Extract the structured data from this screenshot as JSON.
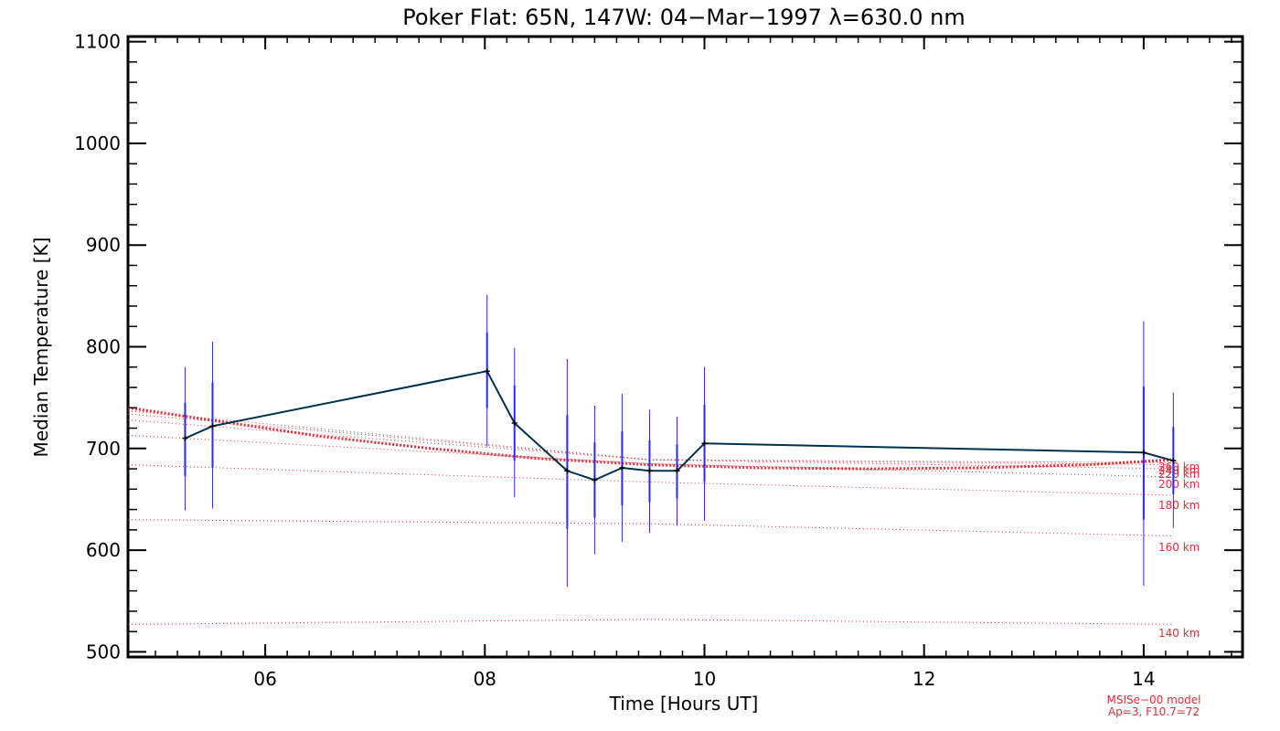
{
  "chart_data": {
    "type": "line",
    "title": "Poker Flat: 65N, 147W: 04−Mar−1997 λ=630.0 nm",
    "xlabel": "Time [Hours UT]",
    "ylabel": "Median Temperature [K]",
    "xlim": [
      4.75,
      14.9
    ],
    "ylim": [
      495,
      1105
    ],
    "xticks": [
      6,
      8,
      10,
      12,
      14
    ],
    "xtick_labels": [
      "06",
      "08",
      "10",
      "12",
      "14"
    ],
    "yticks": [
      500,
      600,
      700,
      800,
      900,
      1000,
      1100
    ],
    "ytick_labels": [
      "500",
      "600",
      "700",
      "800",
      "900",
      "1000",
      "1100"
    ],
    "grid": false,
    "series": [
      {
        "role": "observed",
        "color": "#003050",
        "error_color": "#2a2aff",
        "x": [
          5.27,
          5.52,
          8.02,
          8.27,
          8.75,
          9.0,
          9.25,
          9.5,
          9.75,
          10.0,
          14.0,
          14.27
        ],
        "values": [
          710,
          722,
          776,
          725,
          678,
          669,
          681,
          678,
          678,
          705,
          696,
          688
        ],
        "err_outer": [
          [
            639,
            780
          ],
          [
            641,
            805
          ],
          [
            702,
            851
          ],
          [
            652,
            799
          ],
          [
            564,
            788
          ],
          [
            596,
            742
          ],
          [
            608,
            754
          ],
          [
            617,
            738
          ],
          [
            624,
            731
          ],
          [
            629,
            780
          ],
          [
            565,
            825
          ],
          [
            622,
            755
          ]
        ],
        "err_inner": [
          [
            673,
            745
          ],
          [
            681,
            765
          ],
          [
            740,
            814
          ],
          [
            688,
            762
          ],
          [
            621,
            733
          ],
          [
            632,
            706
          ],
          [
            644,
            717
          ],
          [
            647,
            708
          ],
          [
            651,
            704
          ],
          [
            667,
            743
          ],
          [
            630,
            761
          ],
          [
            655,
            721
          ]
        ]
      },
      {
        "role": "model-main",
        "color": "#e0303a",
        "x": [
          4.75,
          5.5,
          6.5,
          7.5,
          8.5,
          9.5,
          10.5,
          11.5,
          12.5,
          13.5,
          14.27
        ],
        "values": [
          740,
          728,
          712,
          700,
          690,
          684,
          681,
          680,
          681,
          684,
          689
        ]
      }
    ],
    "model_curves": [
      {
        "label": "140 km",
        "x": [
          4.75,
          9.5,
          14.27
        ],
        "values": [
          527,
          532,
          527
        ]
      },
      {
        "label": "160 km",
        "x": [
          4.75,
          9.5,
          14.27
        ],
        "values": [
          630,
          626,
          614
        ]
      },
      {
        "label": "180 km",
        "x": [
          4.75,
          9.5,
          14.27
        ],
        "values": [
          684,
          667,
          654
        ]
      },
      {
        "label": "200 km",
        "x": [
          4.75,
          9.5,
          14.27
        ],
        "values": [
          713,
          685,
          672
        ]
      },
      {
        "label": "220 km",
        "x": [
          4.75,
          9.5,
          14.27
        ],
        "values": [
          728,
          689,
          680
        ]
      },
      {
        "label": "240 km",
        "x": [
          4.75,
          9.5,
          14.27
        ],
        "values": [
          734,
          689,
          684
        ]
      },
      {
        "label": "260 km",
        "x": [
          4.75,
          9.5,
          14.27
        ],
        "values": [
          737,
          689,
          686
        ]
      }
    ],
    "model_note": [
      "MSISe−00 model",
      "Ap=3, F10.7=72"
    ]
  }
}
